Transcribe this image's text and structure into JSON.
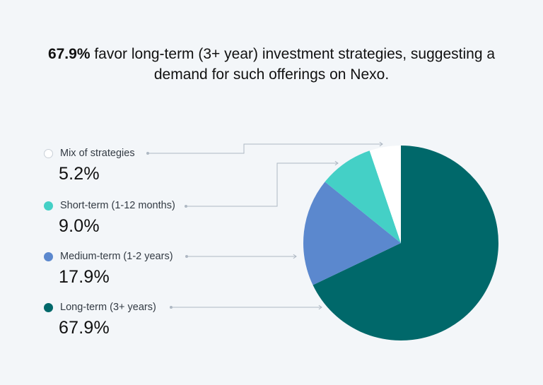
{
  "headline": {
    "bold": "67.9%",
    "text": " favor long-term (3+ year) investment strategies, suggesting a demand for such offerings on Nexo."
  },
  "chart_data": {
    "type": "pie",
    "title": "",
    "slices": [
      {
        "label": "Long-term (3+ years)",
        "value": 67.9,
        "value_label": "67.9%",
        "color": "#00686a"
      },
      {
        "label": "Medium-term (1-2 years)",
        "value": 17.9,
        "value_label": "17.9%",
        "color": "#5b88ce"
      },
      {
        "label": "Short-term (1-12 months)",
        "value": 9.0,
        "value_label": "9.0%",
        "color": "#44d0c6"
      },
      {
        "label": "Mix of strategies",
        "value": 5.2,
        "value_label": "5.2%",
        "color": "#ffffff"
      }
    ],
    "legend_order": [
      "Mix of strategies",
      "Short-term (1-12 months)",
      "Medium-term (1-2 years)",
      "Long-term (3+ years)"
    ],
    "legend_placement": "left"
  }
}
